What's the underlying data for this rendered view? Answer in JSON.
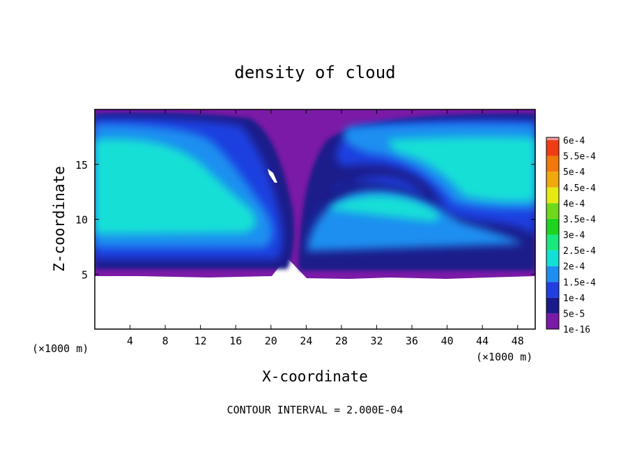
{
  "chart_data": {
    "type": "heatmap",
    "title": "density of cloud",
    "xlabel": "X-coordinate",
    "ylabel": "Z-coordinate",
    "x_unit_label": "(×1000 m)",
    "y_unit_label": "(×1000 m)",
    "xlim": [
      0,
      50
    ],
    "ylim": [
      0,
      20
    ],
    "x_ticks": [
      4,
      8,
      12,
      16,
      20,
      24,
      28,
      32,
      36,
      40,
      44,
      48
    ],
    "x_tick_labels": [
      "4",
      "8",
      "12",
      "16",
      "20",
      "24",
      "28",
      "32",
      "36",
      "40",
      "44",
      "48"
    ],
    "y_ticks": [
      5,
      10,
      15
    ],
    "y_tick_labels": [
      "5",
      "10",
      "15"
    ],
    "grid": false,
    "footer": "CONTOUR INTERVAL = 2.000E-04",
    "colorbar": {
      "levels": [
        {
          "label": "1e-16",
          "color": "#7a1aa6"
        },
        {
          "label": "5e-5",
          "color": "#1a1a8a"
        },
        {
          "label": "1e-4",
          "color": "#1f3fe0"
        },
        {
          "label": "1.5e-4",
          "color": "#1e8ff0"
        },
        {
          "label": "2e-4",
          "color": "#12e0d6"
        },
        {
          "label": "2.5e-4",
          "color": "#19e87d"
        },
        {
          "label": "3e-4",
          "color": "#1ed41e"
        },
        {
          "label": "3.5e-4",
          "color": "#6fd81a"
        },
        {
          "label": "4e-4",
          "color": "#e6ea12"
        },
        {
          "label": "4.5e-4",
          "color": "#f0a80c"
        },
        {
          "label": "5e-4",
          "color": "#f0780c"
        },
        {
          "label": "5.5e-4",
          "color": "#f03c14"
        },
        {
          "label": "6e-4",
          "color": "#f59a9a"
        }
      ]
    },
    "field": {
      "cloud_base_km": 5.2,
      "cloud_top_km": 19.8,
      "description_levels": [
        "1e-16",
        "5e-5",
        "1e-4",
        "1.5e-4",
        "2e-4"
      ]
    }
  }
}
